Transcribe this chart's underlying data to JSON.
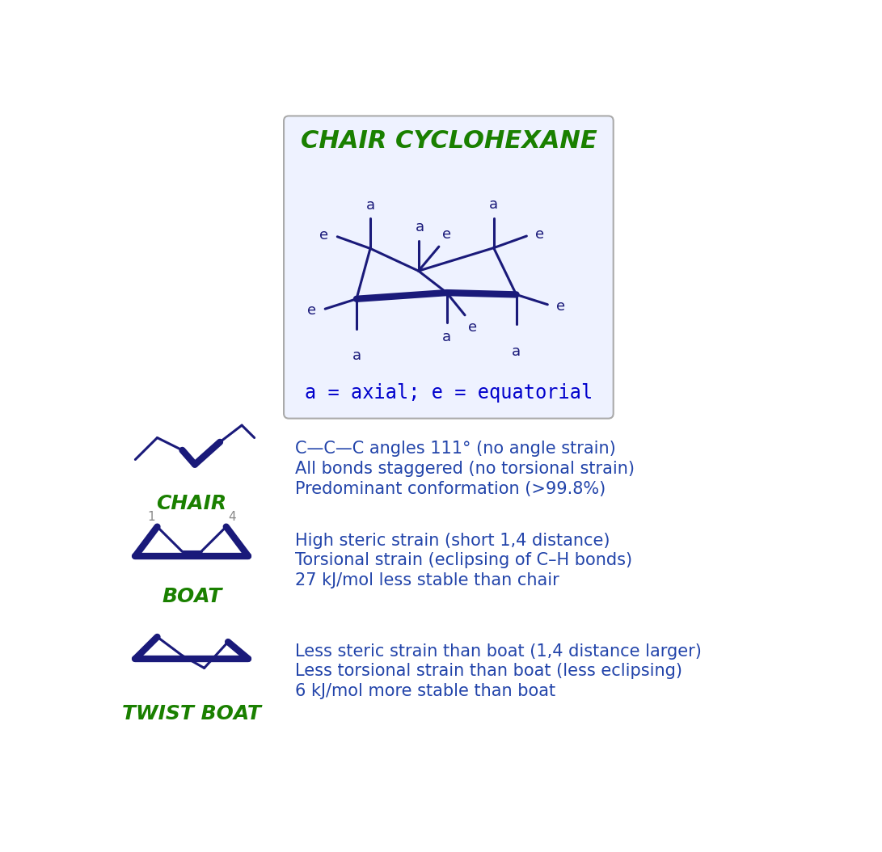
{
  "title": "CHAIR CYCLOHEXANE",
  "title_color": "#1a8000",
  "bond_color": "#1a1a7a",
  "green_color": "#1a8000",
  "gray_color": "#888888",
  "text_color": "#2244aa",
  "bg_color": "#ffffff",
  "box_bg": "#eef2ff",
  "legend_text": "a = axial; e = equatorial",
  "chair_lines": [
    "C—C—C angles 111° (no angle strain)",
    "All bonds staggered (no torsional strain)",
    "Predominant conformation (>99.8%)"
  ],
  "boat_lines": [
    "High steric strain (short 1,4 distance)",
    "Torsional strain (eclipsing of C–H bonds)",
    "27 kJ/mol less stable than chair"
  ],
  "twist_lines": [
    "Less steric strain than boat (1,4 distance larger)",
    "Less torsional strain than boat (less eclipsing)",
    "6 kJ/mol more stable than boat"
  ]
}
